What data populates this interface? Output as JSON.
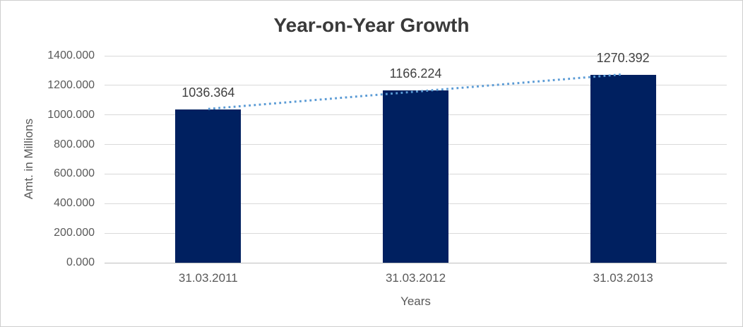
{
  "chart_data": {
    "type": "bar",
    "title": "Year-on-Year Growth",
    "xlabel": "Years",
    "ylabel": "Amt. in Millions",
    "categories": [
      "31.03.2011",
      "31.03.2012",
      "31.03.2013"
    ],
    "values": [
      1036.364,
      1166.224,
      1270.392
    ],
    "data_labels": [
      "1036.364",
      "1166.224",
      "1270.392"
    ],
    "y_ticks": [
      0,
      200,
      400,
      600,
      800,
      1000,
      1200,
      1400
    ],
    "y_tick_labels": [
      "0.000",
      "200.000",
      "400.000",
      "600.000",
      "800.000",
      "1000.000",
      "1200.000",
      "1400.000"
    ],
    "ylim": [
      0,
      1400
    ],
    "grid": true,
    "legend": false,
    "data_label_position": "outside-end",
    "bar_color": "#002060",
    "trendline": {
      "type": "linear",
      "style": "dotted",
      "color": "#5b9bd5"
    },
    "gridline_color": "#d9d9d9",
    "axis_line_color": "#bfbfbf",
    "text_color": "#595959",
    "title_color": "#3a3a3a"
  }
}
